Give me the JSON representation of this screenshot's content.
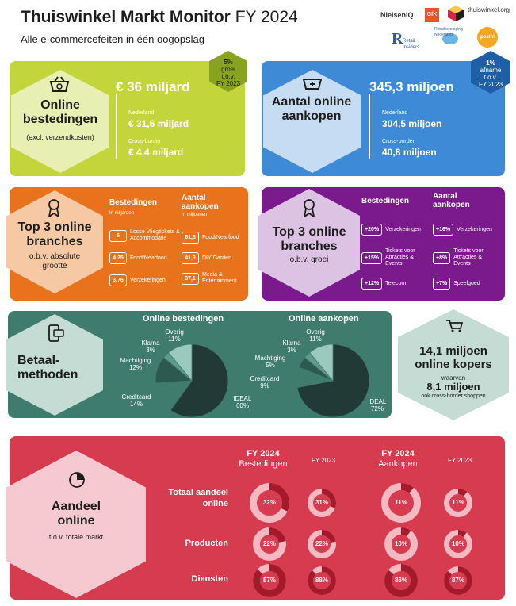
{
  "header": {
    "title_bold": "Thuiswinkel Markt Monitor",
    "title_light": "FY 2024",
    "subtitle": "Alle e-commercefeiten in één oogopslag",
    "logos": [
      "NielsenIQ",
      "GfK",
      "thuiswinkel.org",
      "Retail Insiders",
      "Retailvereniging Nederland",
      "postnl"
    ]
  },
  "online_spend": {
    "title": "Online bestedingen",
    "subtitle": "(excl. verzendkosten)",
    "total": "€ 36 miljard",
    "nl_label": "Nederland",
    "nl_value": "€ 31,6 miljard",
    "cb_label": "Cross-border",
    "cb_value": "€ 4,4 miljard",
    "badge_lines": [
      "5%",
      "groei",
      "t.o.v.",
      "FY 2023"
    ]
  },
  "online_purchases": {
    "title": "Aantal online aankopen",
    "total": "345,3 miljoen",
    "nl_label": "Nederland",
    "nl_value": "304,5 miljoen",
    "cb_label": "Cross-border",
    "cb_value": "40,8 miljoen",
    "badge_lines": [
      "1%",
      "afname",
      "t.o.v.",
      "FY 2023"
    ]
  },
  "top3_absolute": {
    "title": "Top 3 online branches",
    "subtitle": "o.b.v. absolute grootte",
    "col1_header": "Bestedingen",
    "col1_unit": "In miljarden",
    "col2_header": "Aantal aankopen",
    "col2_unit": "In miljoenen",
    "col1_items": [
      {
        "value": "5",
        "label": "Losse Vliegtickets & Accommodatie"
      },
      {
        "value": "4,25",
        "label": "Food/Nearfood"
      },
      {
        "value": "3,76",
        "label": "Verzekeringen"
      }
    ],
    "col2_items": [
      {
        "value": "61,8",
        "label": "Food/Nearfood"
      },
      {
        "value": "41,3",
        "label": "DIY/Garden"
      },
      {
        "value": "37,1",
        "label": "Media & Entertainment"
      }
    ]
  },
  "top3_growth": {
    "title": "Top 3 online branches",
    "subtitle": "o.b.v. groei",
    "col1_header": "Bestedingen",
    "col2_header": "Aantal aankopen",
    "col1_items": [
      {
        "value": "+20%",
        "label": "Verzekeringen"
      },
      {
        "value": "+15%",
        "label": "Tickets voor Attracties & Events"
      },
      {
        "value": "+12%",
        "label": "Telecom"
      }
    ],
    "col2_items": [
      {
        "value": "+16%",
        "label": "Verzekeringen"
      },
      {
        "value": "+8%",
        "label": "Tickets voor Attracties & Events"
      },
      {
        "value": "+7%",
        "label": "Speelgoed"
      }
    ]
  },
  "payment": {
    "title": "Betaal-methoden",
    "chart1_title": "Online bestedingen",
    "chart2_title": "Online aankopen"
  },
  "chart_data": [
    {
      "type": "pie",
      "title": "Online bestedingen",
      "categories": [
        "iDEAL",
        "Creditcard",
        "Machtiging",
        "Klarna",
        "Overig"
      ],
      "values": [
        60,
        14,
        12,
        3,
        11
      ],
      "labels": [
        "iDEAL 60%",
        "Creditcard 14%",
        "Machtiging 12%",
        "Klarna 3%",
        "Overig 11%"
      ]
    },
    {
      "type": "pie",
      "title": "Online aankopen",
      "categories": [
        "iDEAL",
        "Creditcard",
        "Machtiging",
        "Klarna",
        "Overig"
      ],
      "values": [
        72,
        9,
        5,
        3,
        11
      ],
      "labels": [
        "iDEAL 72%",
        "Creditcard 9%",
        "Machtiging 5%",
        "Klarna 3%",
        "Overig 11%"
      ]
    }
  ],
  "online_buyers": {
    "value": "14,1 miljoen online kopers",
    "waarvan": "waarvan",
    "cb_value": "8,1 miljoen",
    "cb_label": "ook cross-border shoppen"
  },
  "share": {
    "title": "Aandeel online",
    "subtitle": "t.o.v. totale markt",
    "col_headers": [
      {
        "main": "FY 2024",
        "sub": "Bestedingen"
      },
      {
        "main": "",
        "sub": "FY 2023"
      },
      {
        "main": "FY 2024",
        "sub": "Aankopen"
      },
      {
        "main": "",
        "sub": "FY 2023"
      }
    ],
    "rows": [
      {
        "label": "Totaal aandeel online",
        "values": [
          32,
          31,
          11,
          11
        ],
        "texts": [
          "32%",
          "31%",
          "11%",
          "11%"
        ]
      },
      {
        "label": "Producten",
        "values": [
          22,
          22,
          10,
          10
        ],
        "texts": [
          "22%",
          "22%",
          "10%",
          "10%"
        ]
      },
      {
        "label": "Diensten",
        "values": [
          87,
          88,
          86,
          87
        ],
        "texts": [
          "87%",
          "88%",
          "86%",
          "87%"
        ]
      }
    ]
  },
  "colors": {
    "green": "#c2d63c",
    "blue": "#3e8ad6",
    "orange": "#e8731c",
    "purple": "#7b1a8c",
    "teal": "#3f7c6d",
    "red": "#d63b4f",
    "donut_track": "#f4b9c1",
    "donut_fill": "#a5192c"
  }
}
